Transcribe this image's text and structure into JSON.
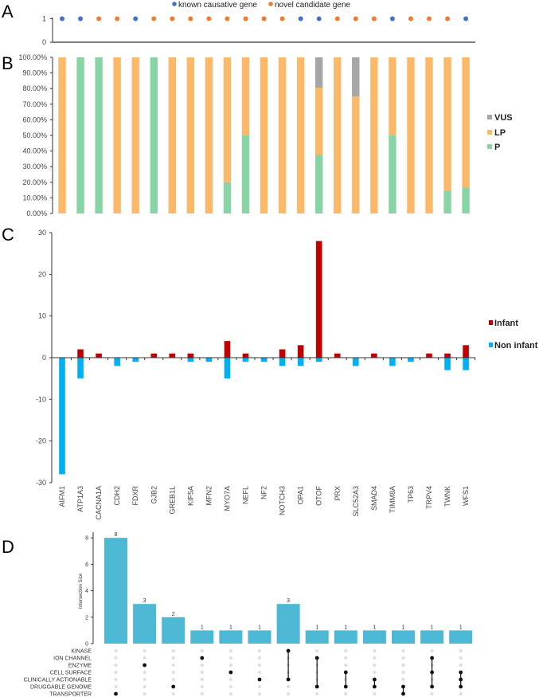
{
  "chart_data": [
    {
      "panel": "A",
      "type": "scatter",
      "categories": [
        "AIFM1",
        "ATP1A3",
        "CACNA1A",
        "CDH2",
        "FDXR",
        "GJB2",
        "GREB1L",
        "KIF5A",
        "MFN2",
        "MYO7A",
        "NEFL",
        "NF2",
        "NOTCH3",
        "OPA1",
        "OTOF",
        "PRX",
        "SLC52A3",
        "SMAD4",
        "TIMM8A",
        "TP63",
        "TRPV4",
        "TWNK",
        "WFS1"
      ],
      "values": [
        1,
        1,
        1,
        1,
        1,
        1,
        1,
        1,
        1,
        1,
        1,
        1,
        1,
        1,
        1,
        1,
        1,
        1,
        1,
        1,
        1,
        1,
        1
      ],
      "class": [
        "known",
        "known",
        "novel",
        "novel",
        "known",
        "novel",
        "novel",
        "novel",
        "novel",
        "novel",
        "novel",
        "novel",
        "novel",
        "known",
        "known",
        "novel",
        "novel",
        "novel",
        "known",
        "novel",
        "novel",
        "novel",
        "known"
      ],
      "legend": [
        {
          "key": "known",
          "label": "known causative gene",
          "color": "#4472c4"
        },
        {
          "key": "novel",
          "label": "novel candidate gene",
          "color": "#ed7d31"
        }
      ],
      "legend_position": "top",
      "yticks": [
        "0",
        "1"
      ],
      "ylim": [
        0,
        1
      ]
    },
    {
      "panel": "B",
      "type": "bar",
      "stacked": true,
      "series": [
        {
          "name": "P",
          "color": "#88d4a4",
          "values": [
            0,
            100,
            100,
            0,
            0,
            100,
            0,
            0,
            0,
            20,
            50,
            0,
            0,
            0,
            37.5,
            0,
            0,
            0,
            50,
            0,
            0,
            14.3,
            16.7
          ]
        },
        {
          "name": "LP",
          "color": "#fdb96a",
          "values": [
            100,
            0,
            0,
            100,
            100,
            0,
            100,
            100,
            100,
            80,
            50,
            100,
            100,
            100,
            43.1,
            100,
            75,
            100,
            50,
            100,
            100,
            85.7,
            83.3
          ]
        },
        {
          "name": "VUS",
          "color": "#a6a6a6",
          "values": [
            0,
            0,
            0,
            0,
            0,
            0,
            0,
            0,
            0,
            0,
            0,
            0,
            0,
            0,
            19.4,
            0,
            25,
            0,
            0,
            0,
            0,
            0,
            0
          ]
        }
      ],
      "legend": [
        "VUS",
        "LP",
        "P"
      ],
      "legend_position": "right",
      "yticks": [
        "0.00%",
        "10.00%",
        "20.00%",
        "30.00%",
        "40.00%",
        "50.00%",
        "60.00%",
        "70.00%",
        "80.00%",
        "90.00%",
        "100.00%"
      ],
      "ylim": [
        0,
        100
      ]
    },
    {
      "panel": "C",
      "type": "bar",
      "series": [
        {
          "name": "Infant",
          "color": "#c00000",
          "values": [
            0,
            2,
            1,
            0,
            0,
            1,
            1,
            1,
            0,
            4,
            1,
            0,
            2,
            3,
            28,
            1,
            0,
            1,
            0,
            0,
            1,
            1,
            3
          ]
        },
        {
          "name": "Non infant",
          "color": "#00b0f0",
          "values": [
            -28,
            -5,
            0,
            -2,
            -1,
            0,
            0,
            -1,
            -1,
            -5,
            -1,
            -1,
            -2,
            -2,
            -1,
            0,
            -2,
            0,
            -2,
            -1,
            0,
            -3,
            -3
          ]
        }
      ],
      "categories": [
        "AIFM1",
        "ATP1A3",
        "CACNA1A",
        "CDH2",
        "FDXR",
        "GJB2",
        "GREB1L",
        "KIF5A",
        "MFN2",
        "MYO7A",
        "NEFL",
        "NF2",
        "NOTCH3",
        "OPA1",
        "OTOF",
        "PRX",
        "SLC52A3",
        "SMAD4",
        "TIMM8A",
        "TP63",
        "TRPV4",
        "TWNK",
        "WFS1"
      ],
      "legend_position": "right",
      "yticks": [
        "-30",
        "-20",
        "-10",
        "0",
        "10",
        "20",
        "30"
      ],
      "ylim": [
        -30,
        30
      ]
    },
    {
      "panel": "D",
      "type": "bar",
      "subtype": "upset",
      "ylabel": "Intersection Size",
      "yticks": [
        "0",
        "2",
        "4",
        "6",
        "8"
      ],
      "ylim": [
        0,
        8
      ],
      "sets": [
        "KINASE",
        "ION CHANNEL",
        "ENZYME",
        "CELL SURFACE",
        "CLINICALLY ACTIONABLE",
        "DRUGGABLE GENOME",
        "TRANSPORTER"
      ],
      "values": [
        8,
        3,
        2,
        1,
        1,
        1,
        3,
        1,
        1,
        1,
        1,
        1,
        1
      ],
      "value_labels": [
        "8",
        "3",
        "2",
        "1",
        "1",
        "1",
        "3",
        "1",
        "1",
        "1",
        "1",
        "1",
        "1"
      ],
      "memberships": [
        [
          6
        ],
        [
          2
        ],
        [
          5
        ],
        [
          1
        ],
        [
          3
        ],
        [
          4
        ],
        [
          0,
          4
        ],
        [
          1,
          5
        ],
        [
          3,
          5
        ],
        [
          4,
          5
        ],
        [
          5,
          6
        ],
        [
          1,
          3,
          5
        ],
        [
          3,
          4,
          5
        ]
      ],
      "bar_color": "#4db8d4"
    }
  ],
  "panels": {
    "a": "A",
    "b": "B",
    "c": "C",
    "d": "D"
  }
}
